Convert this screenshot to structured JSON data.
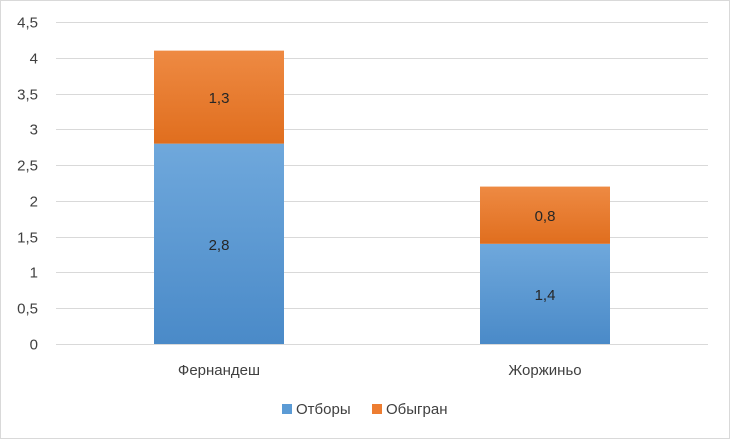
{
  "chart_data": {
    "type": "bar",
    "stacked": true,
    "title": "",
    "xlabel": "",
    "ylabel": "",
    "categories": [
      "Фернандеш",
      "Жоржиньо"
    ],
    "series": [
      {
        "name": "Отборы",
        "values": [
          2.8,
          1.4
        ],
        "color": "#5b9bd5",
        "labels": [
          "2,8",
          "1,4"
        ]
      },
      {
        "name": "Обыгран",
        "values": [
          1.3,
          0.8
        ],
        "color": "#ed7d31",
        "labels": [
          "1,3",
          "0,8"
        ]
      }
    ],
    "ylim": [
      0,
      4.5
    ],
    "y_ticks": [
      {
        "value": 0,
        "label": "0"
      },
      {
        "value": 0.5,
        "label": "0,5"
      },
      {
        "value": 1,
        "label": "1"
      },
      {
        "value": 1.5,
        "label": "1,5"
      },
      {
        "value": 2,
        "label": "2"
      },
      {
        "value": 2.5,
        "label": "2,5"
      },
      {
        "value": 3,
        "label": "3"
      },
      {
        "value": 3.5,
        "label": "3,5"
      },
      {
        "value": 4,
        "label": "4"
      },
      {
        "value": 4.5,
        "label": "4,5"
      }
    ],
    "grid": true,
    "legend_position": "bottom"
  }
}
